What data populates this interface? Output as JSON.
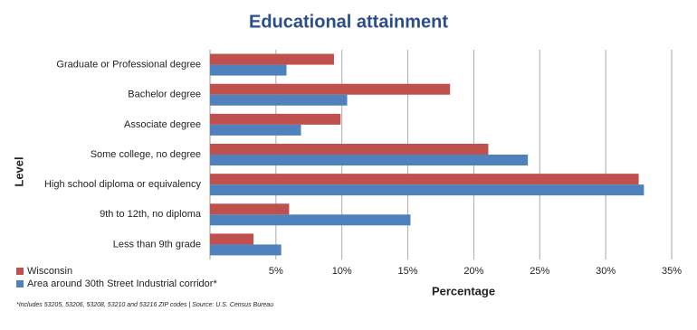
{
  "chart_data": {
    "type": "hbar",
    "title": "Educational attainment",
    "y_label": "Level",
    "x_label": "Percentage",
    "footnote": "*Includes 53205, 53206, 53208, 53210 and 53216  ZIP codes  |  Source: U.S. Census Bureau",
    "categories": [
      "Graduate or Professional degree",
      "Bachelor degree",
      "Associate degree",
      "Some college, no degree",
      "High school diploma or equivalency",
      "9th to 12th, no diploma",
      "Less than 9th grade"
    ],
    "series": [
      {
        "name": "Wisconsin",
        "color": "#c0504d",
        "values": [
          9.4,
          18.2,
          9.9,
          21.1,
          32.5,
          6.0,
          3.3
        ]
      },
      {
        "name": "Area around 30th Street Industrial corridor*",
        "color": "#4f81bd",
        "values": [
          5.8,
          10.4,
          6.9,
          24.1,
          32.9,
          15.2,
          5.4
        ]
      }
    ],
    "xlim": [
      0,
      35
    ],
    "xticks": [
      {
        "value": 5,
        "label": "5%"
      },
      {
        "value": 10,
        "label": "10%"
      },
      {
        "value": 15,
        "label": "15%"
      },
      {
        "value": 20,
        "label": "20%"
      },
      {
        "value": 25,
        "label": "25%"
      },
      {
        "value": 30,
        "label": "30%"
      },
      {
        "value": 35,
        "label": "35%"
      }
    ],
    "grid": true
  }
}
